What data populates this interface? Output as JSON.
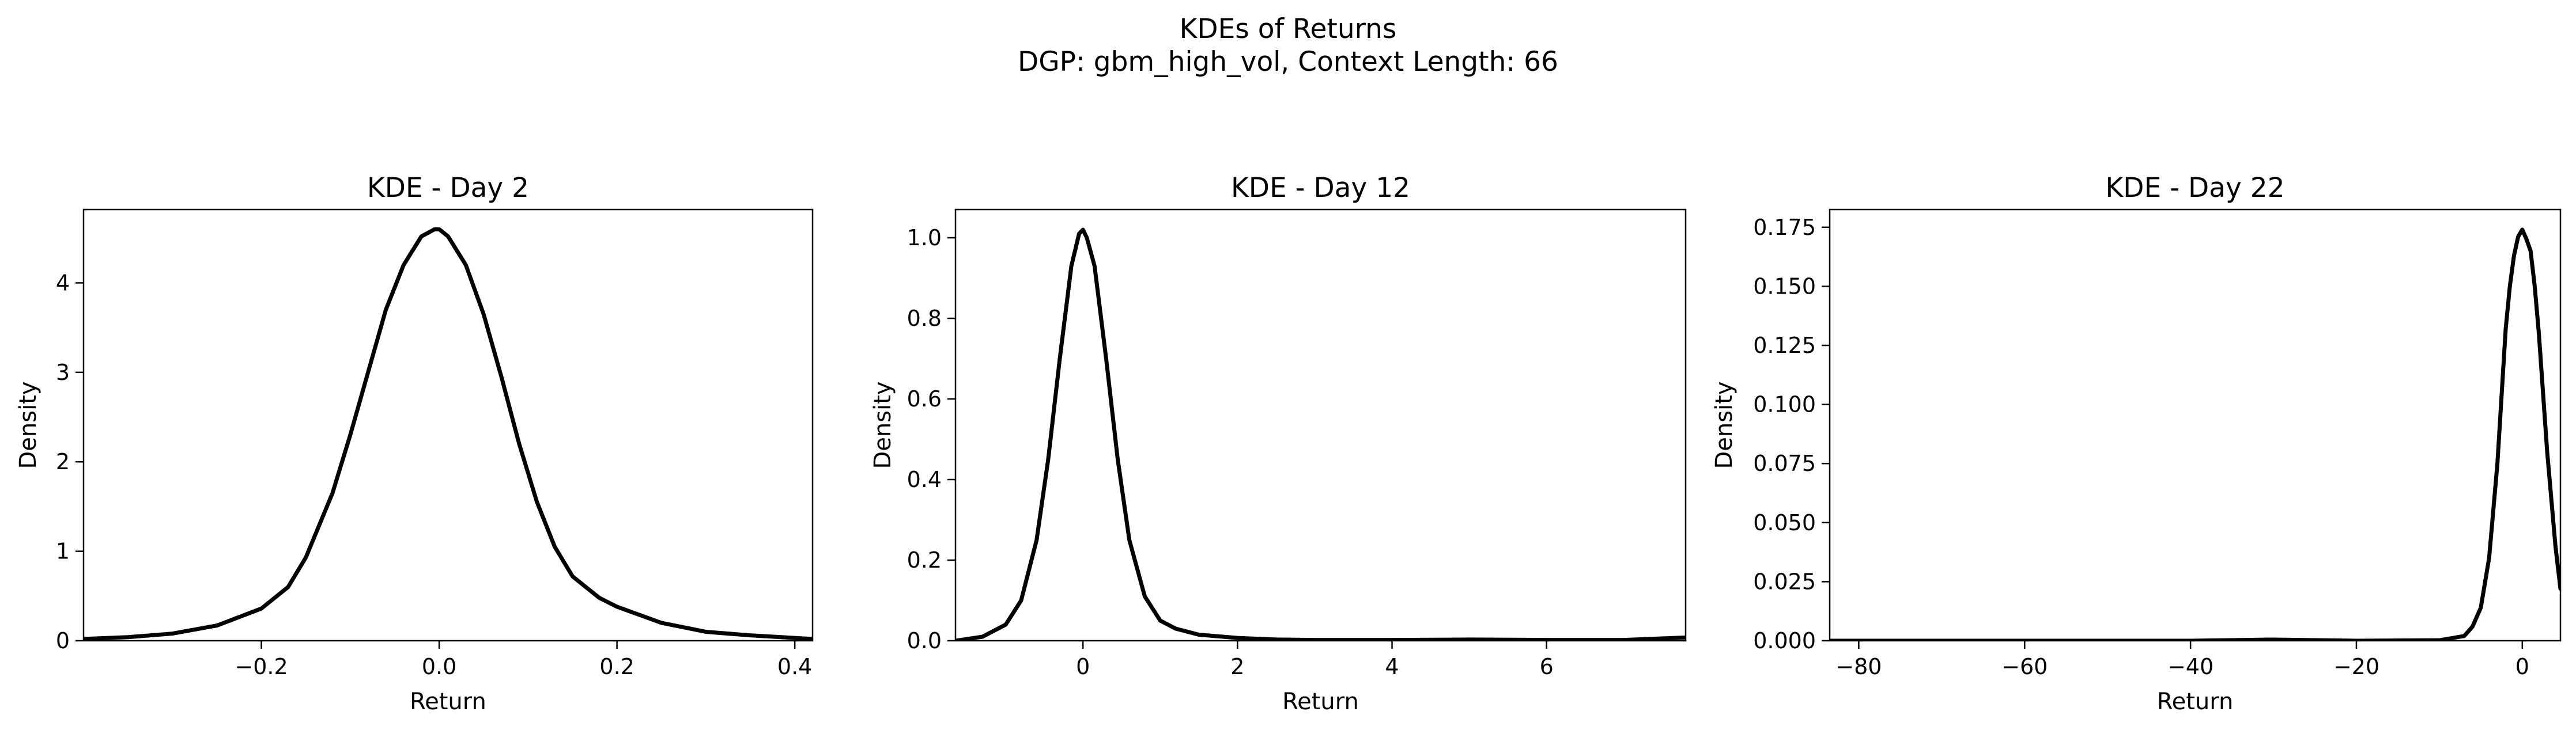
{
  "figure": {
    "title_line1": "KDEs of Returns",
    "title_line2": "DGP: gbm_high_vol, Context Length: 66"
  },
  "chart_data": [
    {
      "type": "line",
      "title": "KDE - Day 2",
      "xlabel": "Return",
      "ylabel": "Density",
      "xlim": [
        -0.4,
        0.42
      ],
      "ylim": [
        0,
        4.82
      ],
      "xticks": [
        -0.2,
        0.0,
        0.2,
        0.4
      ],
      "xtick_labels": [
        "−0.2",
        "0.0",
        "0.2",
        "0.4"
      ],
      "yticks": [
        0,
        1,
        2,
        3,
        4
      ],
      "ytick_labels": [
        "0",
        "1",
        "2",
        "3",
        "4"
      ],
      "series": [
        {
          "name": "KDE",
          "color": "#000000",
          "x": [
            -0.4,
            -0.35,
            -0.3,
            -0.25,
            -0.2,
            -0.17,
            -0.15,
            -0.12,
            -0.1,
            -0.08,
            -0.06,
            -0.04,
            -0.02,
            -0.005,
            0.0,
            0.01,
            0.03,
            0.05,
            0.07,
            0.09,
            0.11,
            0.13,
            0.15,
            0.18,
            0.2,
            0.25,
            0.3,
            0.35,
            0.42
          ],
          "y": [
            0.02,
            0.04,
            0.08,
            0.17,
            0.36,
            0.6,
            0.93,
            1.65,
            2.3,
            3.0,
            3.7,
            4.2,
            4.52,
            4.6,
            4.6,
            4.52,
            4.2,
            3.65,
            2.95,
            2.2,
            1.55,
            1.05,
            0.72,
            0.48,
            0.38,
            0.2,
            0.1,
            0.06,
            0.02
          ]
        }
      ]
    },
    {
      "type": "line",
      "title": "KDE - Day 12",
      "xlabel": "Return",
      "ylabel": "Density",
      "xlim": [
        -1.65,
        7.8
      ],
      "ylim": [
        0,
        1.07
      ],
      "xticks": [
        0,
        2,
        4,
        6
      ],
      "xtick_labels": [
        "0",
        "2",
        "4",
        "6"
      ],
      "yticks": [
        0.0,
        0.2,
        0.4,
        0.6,
        0.8,
        1.0
      ],
      "ytick_labels": [
        "0.0",
        "0.2",
        "0.4",
        "0.6",
        "0.8",
        "1.0"
      ],
      "series": [
        {
          "name": "KDE",
          "color": "#000000",
          "x": [
            -1.65,
            -1.3,
            -1.0,
            -0.8,
            -0.6,
            -0.45,
            -0.3,
            -0.15,
            -0.05,
            0.0,
            0.05,
            0.15,
            0.3,
            0.45,
            0.6,
            0.8,
            1.0,
            1.2,
            1.5,
            2.0,
            2.5,
            3.0,
            4.0,
            5.0,
            6.0,
            7.0,
            7.8
          ],
          "y": [
            0.0,
            0.01,
            0.04,
            0.1,
            0.25,
            0.45,
            0.7,
            0.93,
            1.01,
            1.02,
            1.0,
            0.93,
            0.7,
            0.45,
            0.25,
            0.11,
            0.05,
            0.03,
            0.015,
            0.007,
            0.003,
            0.002,
            0.002,
            0.003,
            0.002,
            0.002,
            0.008
          ]
        }
      ]
    },
    {
      "type": "line",
      "title": "KDE - Day 22",
      "xlabel": "Return",
      "ylabel": "Density",
      "xlim": [
        -83.5,
        4.6
      ],
      "ylim": [
        0,
        0.1825
      ],
      "xticks": [
        -80,
        -60,
        -40,
        -20,
        0
      ],
      "xtick_labels": [
        "−80",
        "−60",
        "−40",
        "−20",
        "0"
      ],
      "yticks": [
        0.0,
        0.025,
        0.05,
        0.075,
        0.1,
        0.125,
        0.15,
        0.175
      ],
      "ytick_labels": [
        "0.000",
        "0.025",
        "0.050",
        "0.075",
        "0.100",
        "0.125",
        "0.150",
        "0.175"
      ],
      "series": [
        {
          "name": "KDE",
          "color": "#000000",
          "x": [
            -83.5,
            -60,
            -40,
            -30,
            -20,
            -10,
            -7,
            -6,
            -5,
            -4,
            -3,
            -2,
            -1.5,
            -1,
            -0.5,
            0,
            0.5,
            1,
            1.5,
            2,
            3,
            4,
            4.6
          ],
          "y": [
            0.0,
            0.0,
            0.0,
            0.0005,
            0.0,
            0.0002,
            0.002,
            0.006,
            0.014,
            0.035,
            0.075,
            0.132,
            0.15,
            0.163,
            0.171,
            0.174,
            0.17,
            0.165,
            0.15,
            0.13,
            0.08,
            0.04,
            0.022
          ]
        }
      ]
    }
  ]
}
